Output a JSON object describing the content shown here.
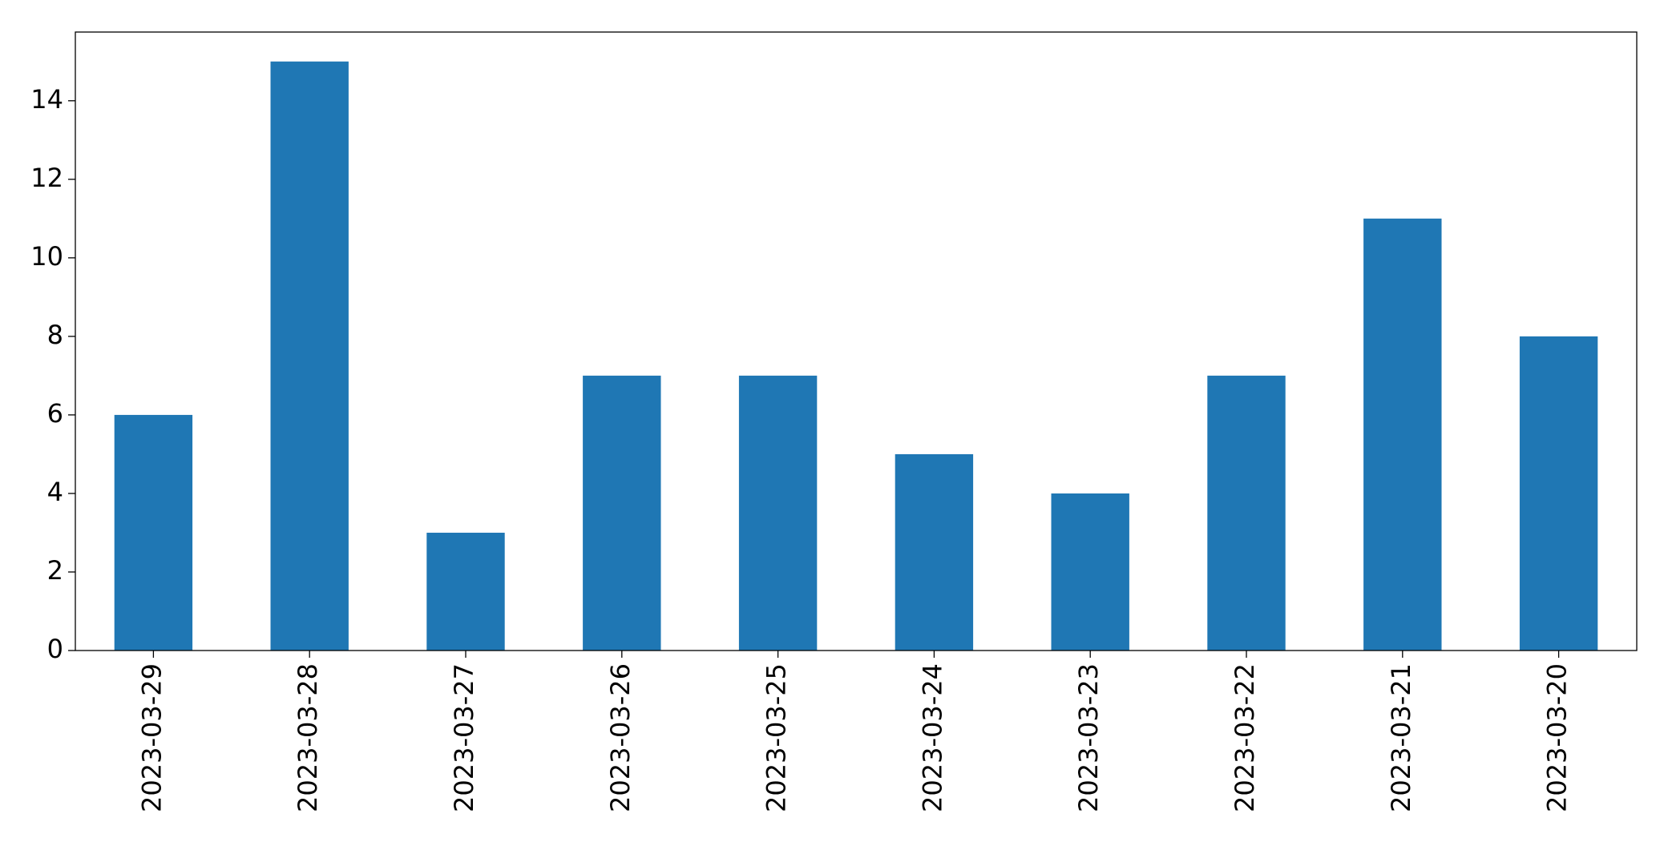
{
  "chart_data": {
    "type": "bar",
    "categories": [
      "2023-03-29",
      "2023-03-28",
      "2023-03-27",
      "2023-03-26",
      "2023-03-25",
      "2023-03-24",
      "2023-03-23",
      "2023-03-22",
      "2023-03-21",
      "2023-03-20"
    ],
    "values": [
      6,
      15,
      3,
      7,
      7,
      5,
      4,
      7,
      11,
      8
    ],
    "color": "#1f77b4",
    "ylim": [
      0,
      15.75
    ],
    "yticks": [
      0,
      2,
      4,
      6,
      8,
      10,
      12,
      14
    ],
    "grid": false
  }
}
